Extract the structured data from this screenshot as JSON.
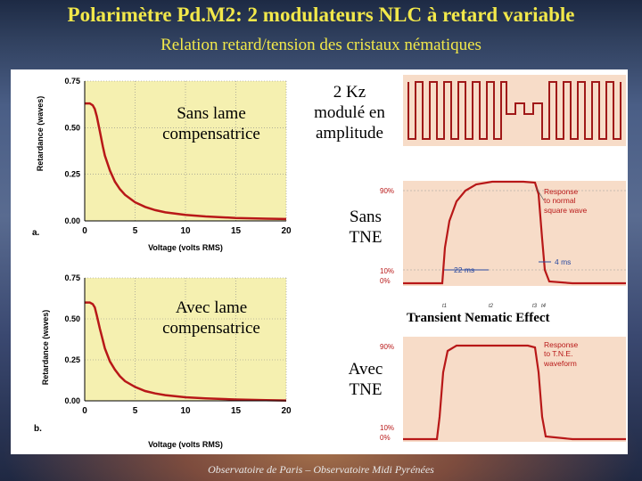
{
  "title": "Polarimètre Pd.M2: 2 modulateurs NLC à retard variable",
  "subtitle": "Relation retard/tension des cristaux nématiques",
  "captions": {
    "sans_lame": "Sans lame\ncompensatrice",
    "avec_lame": "Avec lame\ncompensatrice",
    "kz": "2 Kz\nmodulé en\namplitude",
    "sans_tne": "Sans\nTNE",
    "avec_tne": "Avec\nTNE",
    "transient": "Transient Nematic Effect"
  },
  "footer": "Observatoire de Paris – Observatoire Midi Pyrénées",
  "colors": {
    "title": "#f2e84a",
    "plot_bg": "#f5f0b0",
    "curve": "#b81818",
    "response_bg": "#f7dcc8"
  },
  "chart_data": [
    {
      "type": "line",
      "panel_label": "a.",
      "xlabel": "Voltage (volts RMS)",
      "ylabel": "Retardance (waves)",
      "xticks": [
        "0",
        "5",
        "10",
        "15",
        "20"
      ],
      "yticks": [
        "0.00",
        "0.25",
        "0.50",
        "0.75"
      ],
      "xlim": [
        0,
        20
      ],
      "ylim": [
        0,
        0.75
      ],
      "x": [
        0,
        0.5,
        0.8,
        1.0,
        1.2,
        1.5,
        1.8,
        2.0,
        2.5,
        3.0,
        3.5,
        4.0,
        5.0,
        6.0,
        7.0,
        8.0,
        10.0,
        12.0,
        15.0,
        18.0,
        20.0
      ],
      "y": [
        0.63,
        0.63,
        0.62,
        0.6,
        0.56,
        0.48,
        0.4,
        0.35,
        0.27,
        0.21,
        0.17,
        0.14,
        0.1,
        0.075,
        0.058,
        0.046,
        0.032,
        0.024,
        0.016,
        0.012,
        0.01
      ]
    },
    {
      "type": "line",
      "panel_label": "b.",
      "xlabel": "Voltage (volts RMS)",
      "ylabel": "Retardance (waves)",
      "xticks": [
        "0",
        "5",
        "10",
        "15",
        "20"
      ],
      "yticks": [
        "0.00",
        "0.25",
        "0.50",
        "0.75"
      ],
      "xlim": [
        0,
        20
      ],
      "ylim": [
        0,
        0.75
      ],
      "x": [
        0,
        0.5,
        0.8,
        1.0,
        1.2,
        1.5,
        1.8,
        2.0,
        2.5,
        3.0,
        3.5,
        4.0,
        5.0,
        6.0,
        7.0,
        8.0,
        10.0,
        12.0,
        15.0,
        18.0,
        20.0
      ],
      "y": [
        0.6,
        0.6,
        0.59,
        0.57,
        0.52,
        0.44,
        0.37,
        0.32,
        0.24,
        0.19,
        0.15,
        0.12,
        0.085,
        0.06,
        0.045,
        0.035,
        0.022,
        0.015,
        0.008,
        0.004,
        0.002
      ]
    }
  ],
  "response_plot": {
    "top": {
      "levels": [
        "90%",
        "10%",
        "0%"
      ],
      "annotation": "Response\nto normal\nsquare wave",
      "dim_rise": "22 ms",
      "dim_fall": "4 ms",
      "time_labels": [
        "t1",
        "t2",
        "t3",
        "t4"
      ]
    },
    "bottom": {
      "levels": [
        "90%",
        "10%",
        "0%"
      ],
      "annotation": "Response\nto T.N.E.\nwaveform"
    }
  }
}
